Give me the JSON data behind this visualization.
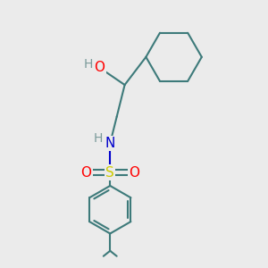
{
  "bg_color": "#ebebeb",
  "line_color": "#3d7a7a",
  "bond_lw": 1.5,
  "atom_colors": {
    "O": "#ff0000",
    "N": "#0000cc",
    "S": "#cccc00",
    "H": "#7a9a9a",
    "C": "#3d7a7a"
  },
  "font_size_atom": 11,
  "font_size_H": 10,
  "xlim": [
    0,
    10
  ],
  "ylim": [
    0,
    10
  ]
}
